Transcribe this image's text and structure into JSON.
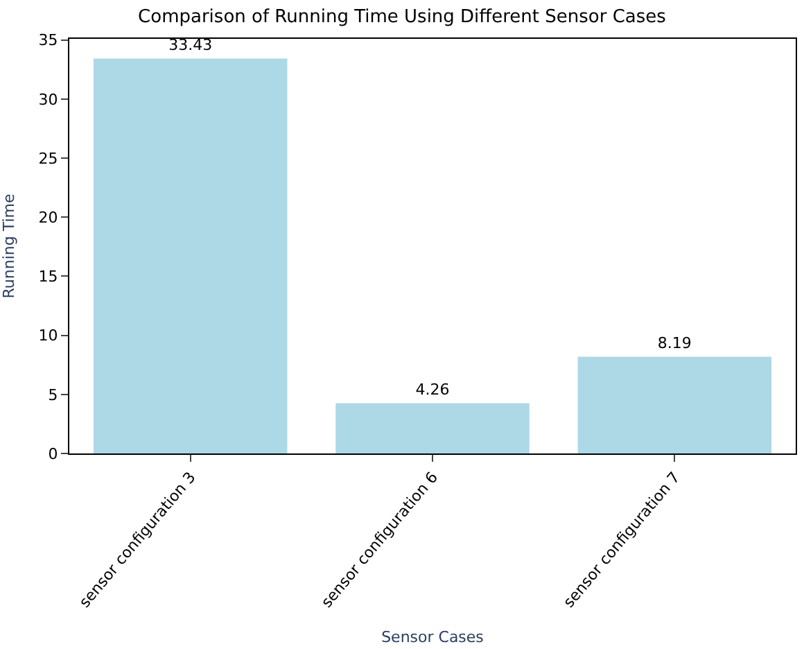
{
  "chart_data": {
    "type": "bar",
    "title": "Comparison of Running Time Using Different Sensor Cases",
    "xlabel": "Sensor Cases",
    "ylabel": "Running Time",
    "categories": [
      "sensor configuration 3",
      "sensor configuration 6",
      "sensor configuration 7"
    ],
    "values": [
      33.43,
      4.26,
      8.19
    ],
    "color": "#add8e6",
    "ylim": [
      0,
      35.1
    ],
    "yticks": [
      0,
      5,
      10,
      15,
      20,
      25,
      30,
      35
    ],
    "data_labels": true
  }
}
